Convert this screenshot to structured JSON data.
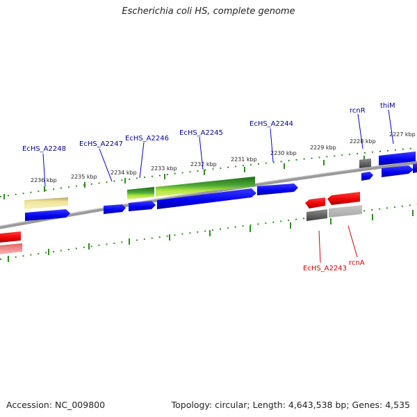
{
  "title": "Escherichia coli HS, complete genome",
  "footer": {
    "accession": "Accession: NC_009800",
    "summary": "Topology: circular; Length: 4,643,538 bp; Genes: 4,535"
  },
  "colors": {
    "forward_gene": "#0000ee",
    "reverse_gene": "#ee0000",
    "rna": "#2e8b1e",
    "pseudogene_forward": "#e8dc8c",
    "other_reverse": "#666666",
    "tick": "#2e8b1e",
    "backbone": "#888888",
    "forward_label": "#00008b",
    "reverse_label": "#cc0000"
  },
  "ticks": [
    {
      "label": "2236 kbp"
    },
    {
      "label": "2235 kbp"
    },
    {
      "label": "2234 kbp"
    },
    {
      "label": "2233 kbp"
    },
    {
      "label": "2232 kbp"
    },
    {
      "label": "2231 kbp"
    },
    {
      "label": "2230 kbp"
    },
    {
      "label": "2229 kbp"
    },
    {
      "label": "2228 kbp"
    },
    {
      "label": "2227 kbp"
    }
  ],
  "gene_labels": [
    {
      "label": "EcHS_A2248",
      "strand": "forward"
    },
    {
      "label": "EcHS_A2247",
      "strand": "forward"
    },
    {
      "label": "EcHS_A2246",
      "strand": "forward"
    },
    {
      "label": "EcHS_A2245",
      "strand": "forward"
    },
    {
      "label": "EcHS_A2244",
      "strand": "forward"
    },
    {
      "label": "rcnR",
      "strand": "forward"
    },
    {
      "label": "thiM",
      "strand": "forward"
    },
    {
      "label": "EcHS_A2243",
      "strand": "reverse"
    },
    {
      "label": "rcnA",
      "strand": "reverse"
    }
  ]
}
